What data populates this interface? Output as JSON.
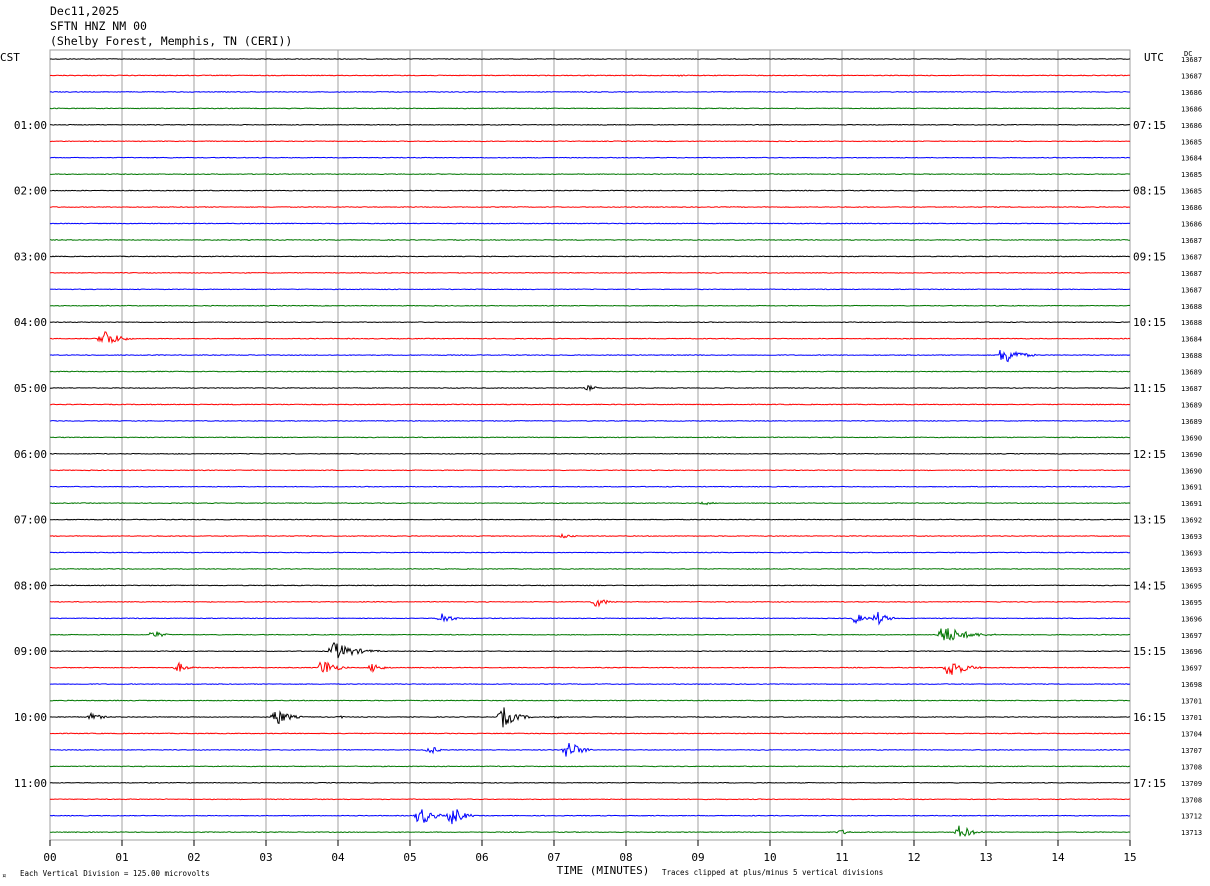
{
  "header": {
    "date": "Dec11,2025",
    "station": "SFTN HNZ NM 00",
    "location": "(Shelby Forest, Memphis, TN (CERI))"
  },
  "left_timezone": "CST",
  "right_timezone": "UTC",
  "dc_label": "DC",
  "footer": {
    "scale_note": "Each Vertical Division =  125.00 microvolts",
    "clip_note": "Traces clipped at plus/minus 5 vertical divisions",
    "corner_mark": "¤"
  },
  "colors": {
    "cycle": [
      "#000000",
      "#ff0000",
      "#0000ff",
      "#007700"
    ],
    "grid": "#a0a0a0"
  },
  "chart_data": {
    "type": "line",
    "title": "",
    "xlabel": "TIME (MINUTES)",
    "ylabel": "",
    "xlim": [
      0,
      15
    ],
    "x_ticks": [
      "00",
      "01",
      "02",
      "03",
      "04",
      "05",
      "06",
      "07",
      "08",
      "09",
      "10",
      "11",
      "12",
      "13",
      "14",
      "15"
    ],
    "grid": true,
    "trace_count": 48,
    "minutes_per_trace": 15,
    "left_hour_labels": [
      {
        "trace": 4,
        "label": "01:00"
      },
      {
        "trace": 8,
        "label": "02:00"
      },
      {
        "trace": 12,
        "label": "03:00"
      },
      {
        "trace": 16,
        "label": "04:00"
      },
      {
        "trace": 20,
        "label": "05:00"
      },
      {
        "trace": 24,
        "label": "06:00"
      },
      {
        "trace": 28,
        "label": "07:00"
      },
      {
        "trace": 32,
        "label": "08:00"
      },
      {
        "trace": 36,
        "label": "09:00"
      },
      {
        "trace": 40,
        "label": "10:00"
      },
      {
        "trace": 44,
        "label": "11:00"
      }
    ],
    "right_hour_labels": [
      {
        "trace": 4,
        "label": "07:15"
      },
      {
        "trace": 8,
        "label": "08:15"
      },
      {
        "trace": 12,
        "label": "09:15"
      },
      {
        "trace": 16,
        "label": "10:15"
      },
      {
        "trace": 20,
        "label": "11:15"
      },
      {
        "trace": 24,
        "label": "12:15"
      },
      {
        "trace": 28,
        "label": "13:15"
      },
      {
        "trace": 32,
        "label": "14:15"
      },
      {
        "trace": 36,
        "label": "15:15"
      },
      {
        "trace": 40,
        "label": "16:15"
      },
      {
        "trace": 44,
        "label": "17:15"
      }
    ],
    "dc_offsets": [
      "13687",
      "13687",
      "13686",
      "13686",
      "13686",
      "13685",
      "13684",
      "13685",
      "13685",
      "13686",
      "13686",
      "13687",
      "13687",
      "13687",
      "13687",
      "13688",
      "13688",
      "13684",
      "13688",
      "13689",
      "13687",
      "13689",
      "13689",
      "13690",
      "13690",
      "13690",
      "13691",
      "13691",
      "13692",
      "13693",
      "13693",
      "13693",
      "13695",
      "13695",
      "13696",
      "13697",
      "13696",
      "13697",
      "13698",
      "13701",
      "13701",
      "13704",
      "13707",
      "13708",
      "13709",
      "13708",
      "13712",
      "13713"
    ],
    "events": [
      {
        "trace": 1,
        "minute": 8.7,
        "amp": 0.4,
        "dur": 0.5
      },
      {
        "trace": 17,
        "minute": 0.7,
        "amp": 5,
        "dur": 0.45
      },
      {
        "trace": 18,
        "minute": 13.2,
        "amp": 5,
        "dur": 0.5
      },
      {
        "trace": 20,
        "minute": 7.45,
        "amp": 1.4,
        "dur": 0.25
      },
      {
        "trace": 27,
        "minute": 9.05,
        "amp": 0.8,
        "dur": 0.35
      },
      {
        "trace": 29,
        "minute": 7.1,
        "amp": 1.2,
        "dur": 0.3
      },
      {
        "trace": 30,
        "minute": 1.8,
        "amp": 0.15,
        "dur": 0.4
      },
      {
        "trace": 33,
        "minute": 7.55,
        "amp": 2.5,
        "dur": 0.35
      },
      {
        "trace": 34,
        "minute": 5.4,
        "amp": 2.8,
        "dur": 0.35
      },
      {
        "trace": 34,
        "minute": 11.15,
        "amp": 2.6,
        "dur": 0.3
      },
      {
        "trace": 34,
        "minute": 11.45,
        "amp": 3.3,
        "dur": 0.35
      },
      {
        "trace": 35,
        "minute": 1.4,
        "amp": 2.2,
        "dur": 0.3
      },
      {
        "trace": 35,
        "minute": 12.35,
        "amp": 4.5,
        "dur": 0.8
      },
      {
        "trace": 36,
        "minute": 3.9,
        "amp": 4.5,
        "dur": 0.7
      },
      {
        "trace": 37,
        "minute": 1.75,
        "amp": 2.3,
        "dur": 0.3
      },
      {
        "trace": 37,
        "minute": 3.75,
        "amp": 4.5,
        "dur": 0.4
      },
      {
        "trace": 37,
        "minute": 4.45,
        "amp": 2.4,
        "dur": 0.3
      },
      {
        "trace": 37,
        "minute": 12.45,
        "amp": 5,
        "dur": 0.5
      },
      {
        "trace": 40,
        "minute": 0.55,
        "amp": 2.1,
        "dur": 0.3
      },
      {
        "trace": 40,
        "minute": 3.1,
        "amp": 4.5,
        "dur": 0.4
      },
      {
        "trace": 40,
        "minute": 4.0,
        "amp": 0.6,
        "dur": 0.2
      },
      {
        "trace": 40,
        "minute": 6.25,
        "amp": 5,
        "dur": 0.45
      },
      {
        "trace": 40,
        "minute": 7.0,
        "amp": 0.6,
        "dur": 0.2
      },
      {
        "trace": 42,
        "minute": 5.25,
        "amp": 2.1,
        "dur": 0.25
      },
      {
        "trace": 42,
        "minute": 7.15,
        "amp": 5,
        "dur": 0.4
      },
      {
        "trace": 46,
        "minute": 5.1,
        "amp": 5,
        "dur": 0.4
      },
      {
        "trace": 46,
        "minute": 5.55,
        "amp": 5,
        "dur": 0.35
      },
      {
        "trace": 47,
        "minute": 10.95,
        "amp": 1.3,
        "dur": 0.3
      },
      {
        "trace": 47,
        "minute": 12.6,
        "amp": 3.6,
        "dur": 0.4
      }
    ]
  }
}
